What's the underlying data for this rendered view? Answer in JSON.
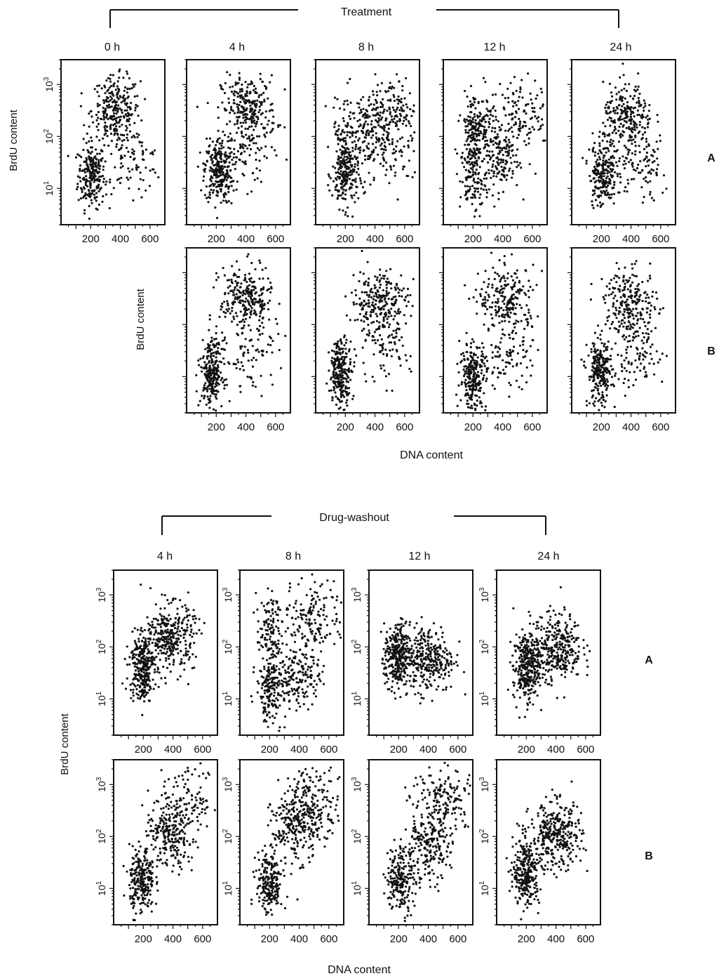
{
  "sections": [
    {
      "id": "treatment",
      "title": "Treatment",
      "columns": [
        "0 h",
        "4 h",
        "8 h",
        "12 h",
        "24 h"
      ],
      "rows": [
        "A",
        "B"
      ],
      "ylabel": "BrdU content",
      "xlabel": "DNA content"
    },
    {
      "id": "washout",
      "title": "Drug-washout",
      "columns": [
        "4 h",
        "8 h",
        "12 h",
        "24 h"
      ],
      "rows": [
        "A",
        "B"
      ],
      "ylabel": "BrdU content",
      "xlabel": "DNA content"
    }
  ],
  "axes": {
    "x_ticks": [
      "200",
      "400",
      "600"
    ],
    "y_ticks": [
      "10",
      "10",
      "10"
    ],
    "y_exponents": [
      "1",
      "2",
      "3"
    ],
    "y_scale": "log"
  },
  "chart_data": [
    {
      "type": "scatter",
      "section": "Treatment",
      "column": "0 h",
      "row": "A",
      "xlabel": "DNA content",
      "ylabel": "BrdU content",
      "xlim": [
        0,
        700
      ],
      "ylim": [
        2,
        3000
      ],
      "clusters": [
        {
          "x": 205,
          "y": 18,
          "n": 230
        },
        {
          "x": 370,
          "y": 320,
          "n": 260
        },
        {
          "x": 480,
          "y": 35,
          "n": 90
        }
      ]
    },
    {
      "type": "scatter",
      "section": "Treatment",
      "column": "4 h",
      "row": "A",
      "xlabel": "DNA content",
      "ylabel": "BrdU content",
      "xlim": [
        0,
        700
      ],
      "ylim": [
        2,
        3000
      ],
      "clusters": [
        {
          "x": 215,
          "y": 22,
          "n": 260
        },
        {
          "x": 420,
          "y": 330,
          "n": 260
        },
        {
          "x": 420,
          "y": 45,
          "n": 70
        }
      ]
    },
    {
      "type": "scatter",
      "section": "Treatment",
      "column": "8 h",
      "row": "A",
      "xlabel": "DNA content",
      "ylabel": "BrdU content",
      "xlim": [
        0,
        700
      ],
      "ylim": [
        2,
        3000
      ],
      "clusters": [
        {
          "x": 200,
          "y": 18,
          "n": 220
        },
        {
          "x": 200,
          "y": 150,
          "n": 60
        },
        {
          "x": 350,
          "y": 110,
          "n": 120
        },
        {
          "x": 500,
          "y": 330,
          "n": 160
        },
        {
          "x": 520,
          "y": 40,
          "n": 80
        }
      ]
    },
    {
      "type": "scatter",
      "section": "Treatment",
      "column": "12 h",
      "row": "A",
      "xlabel": "DNA content",
      "ylabel": "BrdU content",
      "xlim": [
        0,
        700
      ],
      "ylim": [
        2,
        3000
      ],
      "clusters": [
        {
          "x": 210,
          "y": 150,
          "n": 170
        },
        {
          "x": 200,
          "y": 15,
          "n": 120
        },
        {
          "x": 360,
          "y": 40,
          "n": 180
        },
        {
          "x": 500,
          "y": 280,
          "n": 140
        }
      ]
    },
    {
      "type": "scatter",
      "section": "Treatment",
      "column": "24 h",
      "row": "A",
      "xlabel": "DNA content",
      "ylabel": "BrdU content",
      "xlim": [
        0,
        700
      ],
      "ylim": [
        2,
        3000
      ],
      "clusters": [
        {
          "x": 210,
          "y": 20,
          "n": 220
        },
        {
          "x": 380,
          "y": 220,
          "n": 240
        },
        {
          "x": 460,
          "y": 25,
          "n": 100
        }
      ]
    },
    {
      "type": "scatter",
      "section": "Treatment",
      "column": "4 h",
      "row": "B",
      "xlabel": "DNA content",
      "ylabel": "BrdU content",
      "xlim": [
        0,
        700
      ],
      "ylim": [
        2,
        3000
      ],
      "clusters": [
        {
          "x": 170,
          "y": 12,
          "n": 260
        },
        {
          "x": 400,
          "y": 300,
          "n": 260
        },
        {
          "x": 450,
          "y": 25,
          "n": 80
        }
      ]
    },
    {
      "type": "scatter",
      "section": "Treatment",
      "column": "8 h",
      "row": "B",
      "xlabel": "DNA content",
      "ylabel": "BrdU content",
      "xlim": [
        0,
        700
      ],
      "ylim": [
        2,
        3000
      ],
      "clusters": [
        {
          "x": 170,
          "y": 12,
          "n": 250
        },
        {
          "x": 430,
          "y": 280,
          "n": 250
        },
        {
          "x": 440,
          "y": 30,
          "n": 80
        }
      ]
    },
    {
      "type": "scatter",
      "section": "Treatment",
      "column": "12 h",
      "row": "B",
      "xlabel": "DNA content",
      "ylabel": "BrdU content",
      "xlim": [
        0,
        700
      ],
      "ylim": [
        2,
        3000
      ],
      "clusters": [
        {
          "x": 200,
          "y": 10,
          "n": 240
        },
        {
          "x": 430,
          "y": 300,
          "n": 220
        },
        {
          "x": 440,
          "y": 25,
          "n": 100
        }
      ]
    },
    {
      "type": "scatter",
      "section": "Treatment",
      "column": "24 h",
      "row": "B",
      "xlabel": "DNA content",
      "ylabel": "BrdU content",
      "xlim": [
        0,
        700
      ],
      "ylim": [
        2,
        3000
      ],
      "clusters": [
        {
          "x": 190,
          "y": 12,
          "n": 240
        },
        {
          "x": 400,
          "y": 250,
          "n": 240
        },
        {
          "x": 440,
          "y": 25,
          "n": 90
        }
      ]
    },
    {
      "type": "scatter",
      "section": "Drug-washout",
      "column": "4 h",
      "row": "A",
      "xlabel": "DNA content",
      "ylabel": "BrdU content",
      "xlim": [
        0,
        700
      ],
      "ylim": [
        2,
        3000
      ],
      "clusters": [
        {
          "x": 190,
          "y": 40,
          "n": 280
        },
        {
          "x": 380,
          "y": 150,
          "n": 340
        }
      ]
    },
    {
      "type": "scatter",
      "section": "Drug-washout",
      "column": "8 h",
      "row": "A",
      "xlabel": "DNA content",
      "ylabel": "BrdU content",
      "xlim": [
        0,
        700
      ],
      "ylim": [
        2,
        3000
      ],
      "clusters": [
        {
          "x": 200,
          "y": 15,
          "n": 160
        },
        {
          "x": 200,
          "y": 200,
          "n": 110
        },
        {
          "x": 380,
          "y": 30,
          "n": 200
        },
        {
          "x": 500,
          "y": 400,
          "n": 160
        }
      ]
    },
    {
      "type": "scatter",
      "section": "Drug-washout",
      "column": "12 h",
      "row": "A",
      "xlabel": "DNA content",
      "ylabel": "BrdU content",
      "xlim": [
        0,
        700
      ],
      "ylim": [
        2,
        3000
      ],
      "clusters": [
        {
          "x": 190,
          "y": 60,
          "n": 300
        },
        {
          "x": 400,
          "y": 60,
          "n": 320
        }
      ]
    },
    {
      "type": "scatter",
      "section": "Drug-washout",
      "column": "24 h",
      "row": "A",
      "xlabel": "DNA content",
      "ylabel": "BrdU content",
      "xlim": [
        0,
        700
      ],
      "ylim": [
        2,
        3000
      ],
      "clusters": [
        {
          "x": 200,
          "y": 40,
          "n": 300
        },
        {
          "x": 400,
          "y": 100,
          "n": 340
        }
      ]
    },
    {
      "type": "scatter",
      "section": "Drug-washout",
      "column": "4 h",
      "row": "B",
      "xlabel": "DNA content",
      "ylabel": "BrdU content",
      "xlim": [
        0,
        700
      ],
      "ylim": [
        2,
        3000
      ],
      "clusters": [
        {
          "x": 190,
          "y": 14,
          "n": 240
        },
        {
          "x": 380,
          "y": 100,
          "n": 220
        },
        {
          "x": 500,
          "y": 450,
          "n": 130
        }
      ]
    },
    {
      "type": "scatter",
      "section": "Drug-washout",
      "column": "8 h",
      "row": "B",
      "xlabel": "DNA content",
      "ylabel": "BrdU content",
      "xlim": [
        0,
        700
      ],
      "ylim": [
        2,
        3000
      ],
      "clusters": [
        {
          "x": 200,
          "y": 12,
          "n": 220
        },
        {
          "x": 380,
          "y": 150,
          "n": 240
        },
        {
          "x": 500,
          "y": 500,
          "n": 160
        }
      ]
    },
    {
      "type": "scatter",
      "section": "Drug-washout",
      "column": "12 h",
      "row": "B",
      "xlabel": "DNA content",
      "ylabel": "BrdU content",
      "xlim": [
        0,
        700
      ],
      "ylim": [
        2,
        3000
      ],
      "clusters": [
        {
          "x": 210,
          "y": 15,
          "n": 200
        },
        {
          "x": 380,
          "y": 60,
          "n": 220
        },
        {
          "x": 520,
          "y": 500,
          "n": 170
        }
      ]
    },
    {
      "type": "scatter",
      "section": "Drug-washout",
      "column": "24 h",
      "row": "B",
      "xlabel": "DNA content",
      "ylabel": "BrdU content",
      "xlim": [
        0,
        700
      ],
      "ylim": [
        2,
        3000
      ],
      "clusters": [
        {
          "x": 200,
          "y": 20,
          "n": 280
        },
        {
          "x": 400,
          "y": 100,
          "n": 340
        }
      ]
    }
  ]
}
